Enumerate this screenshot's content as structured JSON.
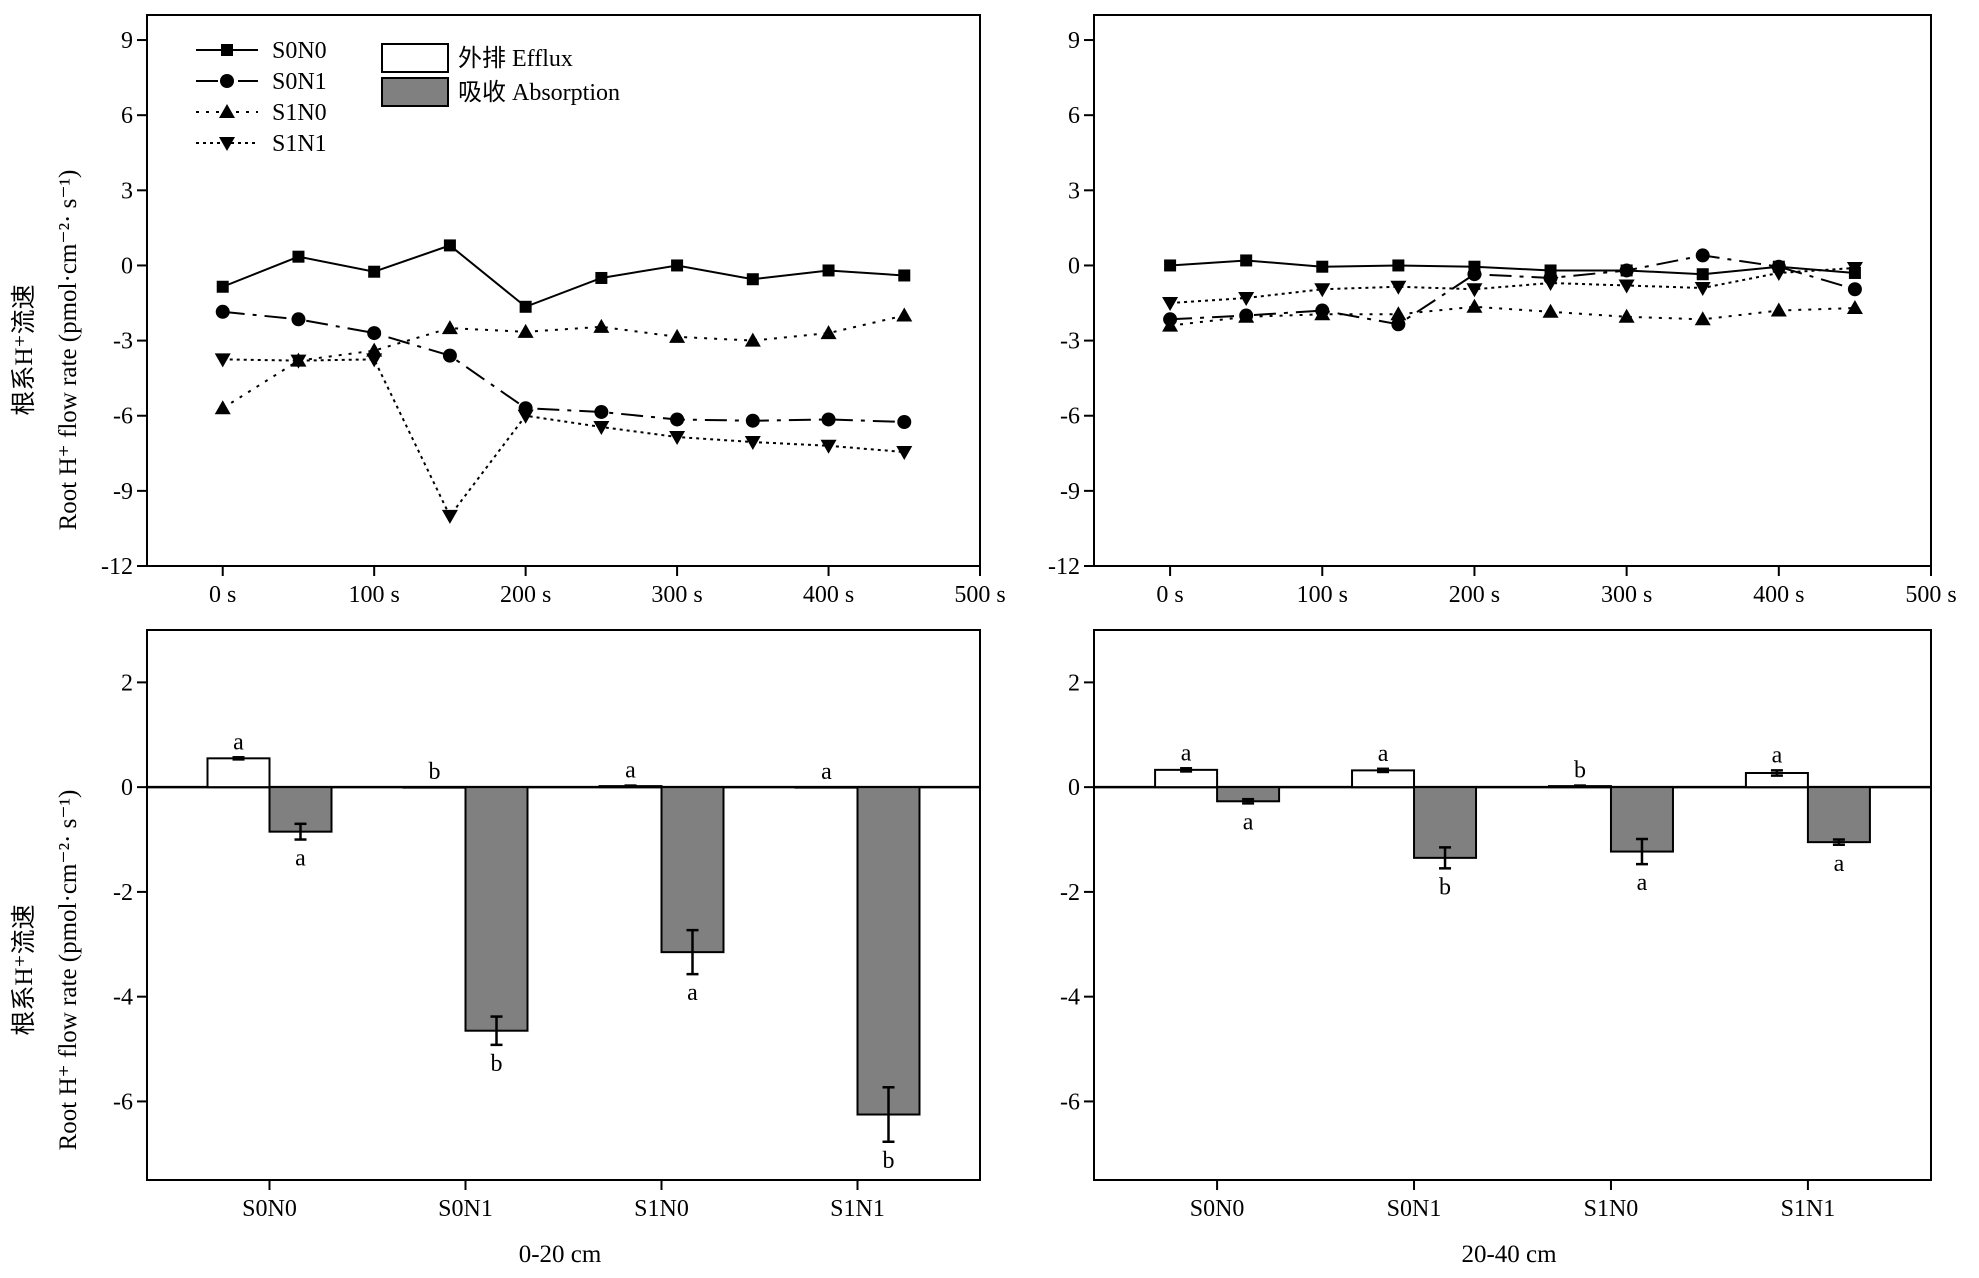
{
  "legend_lines": [
    "S0N0",
    "S0N1",
    "S1N0",
    "S1N1"
  ],
  "legend_bars": [
    "外排 Efflux",
    "吸收 Absorption"
  ],
  "ylabel_zh": "根系H⁺流速",
  "ylabel_en": "Root H⁺ flow rate (pmol·cm⁻²· s⁻¹)",
  "depths": [
    "0-20 cm",
    "20-40 cm"
  ],
  "colors": {
    "efflux": "#ffffff",
    "absorption": "#808080",
    "line": "#000000"
  },
  "chart_data": [
    {
      "type": "line",
      "panel": "top-left",
      "xlabel": "",
      "ylabel": "Root H⁺ flow rate (pmol·cm⁻²· s⁻¹)",
      "x": [
        0,
        50,
        100,
        150,
        200,
        250,
        300,
        350,
        400,
        450
      ],
      "xticks": [
        "0 s",
        "100 s",
        "200 s",
        "300 s",
        "400 s",
        "500 s"
      ],
      "xtick_values": [
        0,
        100,
        200,
        300,
        400,
        500
      ],
      "xlim": [
        -50,
        500
      ],
      "yticks": [
        9,
        6,
        3,
        0,
        -3,
        -6,
        -9,
        -12
      ],
      "ylim": [
        -12,
        10
      ],
      "legend_position": "top-left",
      "series": [
        {
          "name": "S0N0",
          "marker": "square",
          "dash": "solid",
          "values": [
            -0.85,
            0.35,
            -0.25,
            0.8,
            -1.65,
            -0.5,
            0.0,
            -0.55,
            -0.2,
            -0.4
          ]
        },
        {
          "name": "S0N1",
          "marker": "circle",
          "dash": "dashdot",
          "values": [
            -1.85,
            -2.15,
            -2.7,
            -3.6,
            -5.7,
            -5.85,
            -6.15,
            -6.2,
            -6.15,
            -6.25
          ]
        },
        {
          "name": "S1N0",
          "marker": "triangle-up",
          "dash": "dotted",
          "values": [
            -5.7,
            -3.8,
            -3.4,
            -2.5,
            -2.65,
            -2.45,
            -2.85,
            -3.0,
            -2.7,
            -2.0
          ]
        },
        {
          "name": "S1N1",
          "marker": "triangle-down",
          "dash": "densedot",
          "values": [
            -3.75,
            -3.8,
            -3.75,
            -10.0,
            -6.0,
            -6.45,
            -6.85,
            -7.05,
            -7.2,
            -7.45
          ]
        }
      ]
    },
    {
      "type": "line",
      "panel": "top-right",
      "xlabel": "",
      "ylabel": "",
      "x": [
        0,
        50,
        100,
        150,
        200,
        250,
        300,
        350,
        400,
        450
      ],
      "xticks": [
        "0 s",
        "100 s",
        "200 s",
        "300 s",
        "400 s",
        "500 s"
      ],
      "xtick_values": [
        0,
        100,
        200,
        300,
        400,
        500
      ],
      "xlim": [
        -50,
        500
      ],
      "yticks": [
        9,
        6,
        3,
        0,
        -3,
        -6,
        -9,
        -12
      ],
      "ylim": [
        -12,
        10
      ],
      "series": [
        {
          "name": "S0N0",
          "marker": "square",
          "dash": "solid",
          "values": [
            0.0,
            0.2,
            -0.05,
            0.0,
            -0.05,
            -0.2,
            -0.2,
            -0.35,
            -0.05,
            -0.3
          ]
        },
        {
          "name": "S0N1",
          "marker": "circle",
          "dash": "dashdot",
          "values": [
            -2.15,
            -2.0,
            -1.8,
            -2.35,
            -0.35,
            -0.5,
            -0.2,
            0.4,
            -0.05,
            -0.95
          ]
        },
        {
          "name": "S1N0",
          "marker": "triangle-up",
          "dash": "dotted",
          "values": [
            -2.4,
            -2.05,
            -1.95,
            -1.95,
            -1.65,
            -1.85,
            -2.05,
            -2.15,
            -1.8,
            -1.7
          ]
        },
        {
          "name": "S1N1",
          "marker": "triangle-down",
          "dash": "densedot",
          "values": [
            -1.5,
            -1.3,
            -0.95,
            -0.85,
            -0.95,
            -0.7,
            -0.8,
            -0.9,
            -0.3,
            -0.1
          ]
        }
      ]
    },
    {
      "type": "bar",
      "panel": "bottom-left",
      "xlabel": "0-20 cm",
      "ylabel": "Root H⁺ flow rate (pmol·cm⁻²· s⁻¹)",
      "categories": [
        "S0N0",
        "S0N1",
        "S1N0",
        "S1N1"
      ],
      "yticks": [
        2,
        0,
        -2,
        -4,
        -6
      ],
      "ylim": [
        -7.5,
        3
      ],
      "series": [
        {
          "name": "外排 Efflux",
          "values": [
            0.55,
            0.0,
            0.02,
            0.0
          ],
          "errors": [
            0.02,
            0.0,
            0.01,
            0.0
          ],
          "letters": [
            "a",
            "b",
            "a",
            "a"
          ]
        },
        {
          "name": "吸收 Absorption",
          "values": [
            -0.85,
            -4.65,
            -3.15,
            -6.25
          ],
          "errors": [
            0.15,
            0.27,
            0.42,
            0.52
          ],
          "letters": [
            "a",
            "b",
            "a",
            "b"
          ]
        }
      ]
    },
    {
      "type": "bar",
      "panel": "bottom-right",
      "xlabel": "20-40 cm",
      "ylabel": "",
      "categories": [
        "S0N0",
        "S0N1",
        "S1N0",
        "S1N1"
      ],
      "yticks": [
        2,
        0,
        -2,
        -4,
        -6
      ],
      "ylim": [
        -7.5,
        3
      ],
      "series": [
        {
          "name": "外排 Efflux",
          "values": [
            0.33,
            0.32,
            0.02,
            0.27
          ],
          "errors": [
            0.03,
            0.03,
            0.01,
            0.05
          ],
          "letters": [
            "a",
            "a",
            "b",
            "a"
          ]
        },
        {
          "name": "吸收 Absorption",
          "values": [
            -0.27,
            -1.35,
            -1.23,
            -1.05
          ],
          "errors": [
            0.04,
            0.2,
            0.24,
            0.05
          ],
          "letters": [
            "a",
            "b",
            "a",
            "a"
          ]
        }
      ]
    }
  ]
}
